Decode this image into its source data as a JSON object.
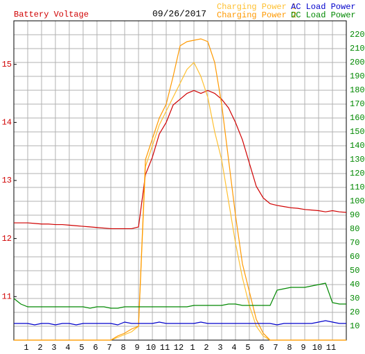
{
  "chart_data": {
    "type": "line",
    "title": "09/26/2017",
    "y_label": "Battery Voltage",
    "x": [
      0,
      0.5,
      1,
      1.5,
      2,
      2.5,
      3,
      3.5,
      4,
      4.5,
      5,
      5.5,
      6,
      6.5,
      7,
      7.5,
      8,
      8.5,
      9,
      9.5,
      10,
      10.5,
      11,
      11.5,
      12,
      12.5,
      13,
      13.5,
      14,
      14.5,
      15,
      15.5,
      16,
      16.5,
      17,
      17.5,
      18,
      18.5,
      19,
      19.5,
      20,
      20.5,
      21,
      21.5,
      22,
      22.5,
      23,
      23.5,
      24
    ],
    "xlim": [
      0,
      24
    ],
    "xticks": [
      1,
      2,
      3,
      4,
      5,
      6,
      7,
      8,
      9,
      10,
      11,
      12,
      {
        "value": 13,
        "label": "1"
      },
      {
        "value": 14,
        "label": "2"
      },
      {
        "value": 15,
        "label": "3"
      },
      {
        "value": 16,
        "label": "4"
      },
      {
        "value": 17,
        "label": "5"
      },
      {
        "value": 18,
        "label": "6"
      },
      {
        "value": 19,
        "label": "7"
      },
      {
        "value": 20,
        "label": "8"
      },
      {
        "value": 21,
        "label": "9"
      },
      {
        "value": 22,
        "label": "10"
      },
      {
        "value": 23,
        "label": "11"
      }
    ],
    "ylim": [
      10.25,
      15.75
    ],
    "yticks": [
      11,
      12,
      13,
      14,
      15
    ],
    "y2lim": [
      0,
      230
    ],
    "y2ticks": [
      10,
      20,
      30,
      40,
      50,
      60,
      70,
      80,
      90,
      100,
      110,
      120,
      130,
      140,
      150,
      160,
      170,
      180,
      190,
      200,
      210,
      220
    ],
    "grid": true,
    "series": [
      {
        "name": "Battery Voltage",
        "color": "#d00000",
        "axis": "y",
        "values": [
          12.27,
          12.27,
          12.27,
          12.26,
          12.25,
          12.25,
          12.24,
          12.24,
          12.23,
          12.22,
          12.21,
          12.2,
          12.19,
          12.18,
          12.17,
          12.17,
          12.17,
          12.17,
          12.2,
          13.1,
          13.4,
          13.8,
          14.0,
          14.3,
          14.4,
          14.5,
          14.55,
          14.5,
          14.55,
          14.5,
          14.4,
          14.25,
          14.0,
          13.7,
          13.3,
          12.9,
          12.7,
          12.6,
          12.57,
          12.55,
          12.53,
          12.52,
          12.5,
          12.49,
          12.48,
          12.46,
          12.48,
          12.46,
          12.45
        ]
      },
      {
        "name": "Charging Power 1",
        "color": "#ffc030",
        "axis": "y2",
        "values": [
          0,
          0,
          0,
          0,
          0,
          0,
          0,
          0,
          0,
          0,
          0,
          0,
          0,
          0,
          0,
          2,
          4,
          6,
          10,
          125,
          140,
          155,
          165,
          175,
          185,
          195,
          200,
          190,
          175,
          150,
          130,
          100,
          70,
          45,
          25,
          10,
          3,
          0,
          0,
          0,
          0,
          0,
          0,
          0,
          0,
          0,
          0,
          0,
          0
        ]
      },
      {
        "name": "Charging Power 2",
        "color": "#ff9900",
        "axis": "y2",
        "values": [
          0,
          0,
          0,
          0,
          0,
          0,
          0,
          0,
          0,
          0,
          0,
          0,
          0,
          0,
          0,
          3,
          5,
          8,
          10,
          130,
          145,
          160,
          170,
          190,
          212,
          215,
          216,
          217,
          215,
          200,
          170,
          130,
          90,
          55,
          35,
          15,
          5,
          0,
          0,
          0,
          0,
          0,
          0,
          0,
          0,
          0,
          0,
          0,
          0
        ]
      },
      {
        "name": "AC Load Power",
        "color": "#0000cc",
        "axis": "y2",
        "values": [
          12,
          12,
          12,
          11,
          12,
          12,
          11,
          12,
          12,
          11,
          12,
          12,
          12,
          12,
          12,
          11,
          13,
          12,
          12,
          12,
          12,
          13,
          12,
          12,
          12,
          12,
          12,
          13,
          12,
          12,
          12,
          12,
          12,
          12,
          12,
          12,
          12,
          12,
          11,
          12,
          12,
          12,
          12,
          12,
          13,
          14,
          13,
          12,
          12
        ]
      },
      {
        "name": "DC Load Power",
        "color": "#008800",
        "axis": "y2",
        "values": [
          30,
          26,
          24,
          24,
          24,
          24,
          24,
          24,
          24,
          24,
          24,
          23,
          24,
          24,
          23,
          23,
          24,
          24,
          24,
          24,
          24,
          24,
          24,
          24,
          24,
          24,
          25,
          25,
          25,
          25,
          25,
          26,
          26,
          25,
          25,
          25,
          25,
          25,
          36,
          37,
          38,
          38,
          38,
          39,
          40,
          41,
          27,
          26,
          26
        ]
      }
    ]
  }
}
